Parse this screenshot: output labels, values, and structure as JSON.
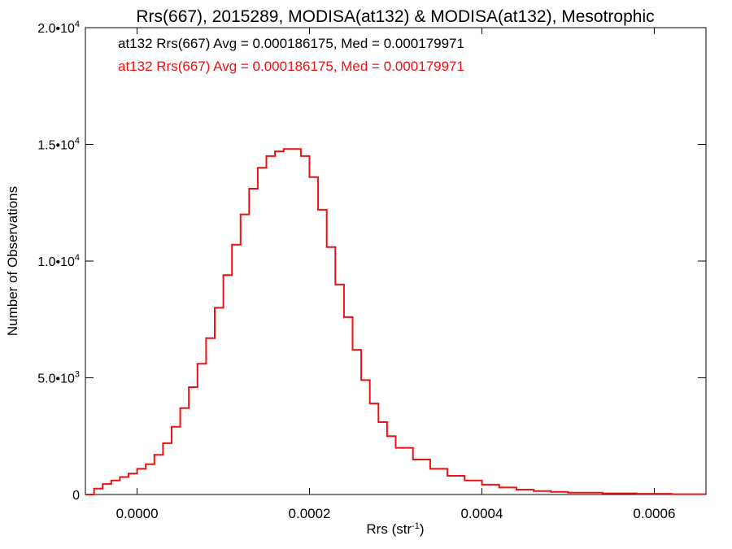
{
  "chart_data": {
    "type": "line",
    "title": "Rrs(667), 2015289, MODISA(at132) & MODISA(at132), Mesotrophic",
    "xlabel": "Rrs (str",
    "xlabel_sup": "-1",
    "xlabel_close": ")",
    "ylabel": "Number of Observations",
    "xlim": [
      -6e-05,
      0.00066
    ],
    "ylim": [
      0,
      20000
    ],
    "x_ticks": [
      {
        "value": 0.0,
        "label": "0.0000"
      },
      {
        "value": 0.0002,
        "label": "0.0002"
      },
      {
        "value": 0.0004,
        "label": "0.0004"
      },
      {
        "value": 0.0006,
        "label": "0.0006"
      }
    ],
    "y_ticks": [
      {
        "value": 0,
        "base": "0",
        "exp": ""
      },
      {
        "value": 5000,
        "base": "5.0•10",
        "exp": "3"
      },
      {
        "value": 10000,
        "base": "1.0•10",
        "exp": "4"
      },
      {
        "value": 15000,
        "base": "1.5•10",
        "exp": "4"
      },
      {
        "value": 20000,
        "base": "2.0•10",
        "exp": "4"
      }
    ],
    "annotations": [
      {
        "text": "at132 Rrs(667) Avg = 0.000186175, Med = 0.000179971",
        "color": "#000000"
      },
      {
        "text": "at132 Rrs(667) Avg = 0.000186175, Med = 0.000179971",
        "color": "#ee1111"
      }
    ],
    "colors": {
      "axes": "#000000",
      "series": "#ee1111"
    },
    "series": [
      {
        "style": "step",
        "x": [
          -6e-05,
          -5e-05,
          -4e-05,
          -3e-05,
          -2e-05,
          -1e-05,
          0.0,
          1e-05,
          2e-05,
          3e-05,
          4e-05,
          5e-05,
          6e-05,
          7e-05,
          8e-05,
          9e-05,
          0.0001,
          0.00011,
          0.00012,
          0.00013,
          0.00014,
          0.00015,
          0.00016,
          0.00017,
          0.00018,
          0.00019,
          0.0002,
          0.00021,
          0.00022,
          0.00023,
          0.00024,
          0.00025,
          0.00026,
          0.00027,
          0.00028,
          0.00029,
          0.0003,
          0.00032,
          0.00034,
          0.00036,
          0.00038,
          0.0004,
          0.00042,
          0.00044,
          0.00046,
          0.00048,
          0.0005,
          0.00054,
          0.00058,
          0.00062,
          0.00066
        ],
        "y": [
          0,
          250,
          450,
          600,
          750,
          900,
          1100,
          1300,
          1700,
          2200,
          2900,
          3700,
          4600,
          5600,
          6700,
          8000,
          9400,
          10700,
          12000,
          13100,
          14000,
          14500,
          14700,
          14800,
          14800,
          14500,
          13600,
          12200,
          10600,
          9000,
          7600,
          6200,
          4900,
          3900,
          3100,
          2500,
          2000,
          1500,
          1100,
          800,
          600,
          420,
          300,
          210,
          150,
          110,
          80,
          50,
          30,
          15,
          0
        ]
      }
    ]
  }
}
